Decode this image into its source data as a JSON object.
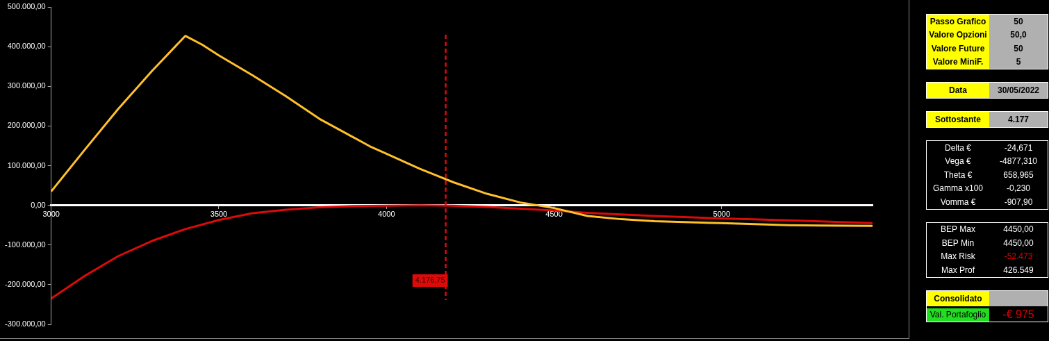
{
  "chart_data": [
    {
      "type": "line",
      "xlim": [
        3000,
        5450
      ],
      "xticks": [
        3000,
        3500,
        4000,
        4500,
        5000
      ],
      "ylim": [
        -300000,
        500000
      ],
      "yticks": [
        {
          "value": -300000,
          "label": "-300.000,00"
        },
        {
          "value": -200000,
          "label": "-200.000,00"
        },
        {
          "value": -100000,
          "label": "-100.000,00"
        },
        {
          "value": 0,
          "label": "0,00"
        },
        {
          "value": 100000,
          "label": "100.000,00"
        },
        {
          "value": 200000,
          "label": "200.000,00"
        },
        {
          "value": 300000,
          "label": "300.000,00"
        },
        {
          "value": 400000,
          "label": "400.000,00"
        },
        {
          "value": 500000,
          "label": "500.000,00"
        }
      ],
      "grid": false,
      "legend": false,
      "marker": "none",
      "line_style": "solid",
      "series": [
        {
          "color": "#ffc02a",
          "x": [
            3000,
            3100,
            3200,
            3300,
            3400,
            3450,
            3500,
            3600,
            3700,
            3800,
            3900,
            3950,
            4000,
            4100,
            4200,
            4300,
            4400,
            4450,
            4500,
            4600,
            4700,
            4800,
            5000,
            5200,
            5300,
            5450
          ],
          "values": [
            35000,
            140000,
            243000,
            338000,
            427000,
            405000,
            378000,
            328000,
            275000,
            218000,
            172000,
            149000,
            130000,
            92000,
            58000,
            29000,
            7000,
            0,
            -7000,
            -27000,
            -35000,
            -40000,
            -45000,
            -50000,
            -51000,
            -52000
          ]
        },
        {
          "color": "#dd0a0a",
          "x": [
            3000,
            3100,
            3200,
            3300,
            3400,
            3500,
            3600,
            3700,
            3800,
            3900,
            4000,
            4100,
            4200,
            4300,
            4500,
            4600,
            4800,
            5000,
            5200,
            5450
          ],
          "values": [
            -235000,
            -178000,
            -128000,
            -90000,
            -60000,
            -37000,
            -20000,
            -11000,
            -5000,
            -2000,
            -1000,
            0,
            -1000,
            -4000,
            -13000,
            -19000,
            -27000,
            -33000,
            -38000,
            -45000
          ]
        }
      ],
      "ref_lines": [
        {
          "axis": "x",
          "value": 4176.75,
          "label": "4.176,75",
          "color": "#dd0a0a",
          "line_style": "dashed"
        }
      ]
    },
    {
      "type": "other",
      "annotations": [
        "Passo Grafico",
        "50",
        "Valore Opzioni",
        "50,0",
        "Valore Future",
        "50",
        "Valore MiniF.",
        "5",
        "Data",
        "30/05/2022",
        "Sottostante",
        "4.177",
        "Delta €",
        "-24,671",
        "Vega €",
        "-4877,310",
        "Theta €",
        "658,965",
        "Gamma x100",
        "-0,230",
        "Vomma €",
        "-907,90",
        "BEP Max",
        "4450,00",
        "BEP Min",
        "4450,00",
        "Max Risk",
        "-52.473",
        "Max Prof",
        "426.549",
        "Consolidato",
        "Val. Portafoglio",
        "-€ 975"
      ]
    }
  ]
}
